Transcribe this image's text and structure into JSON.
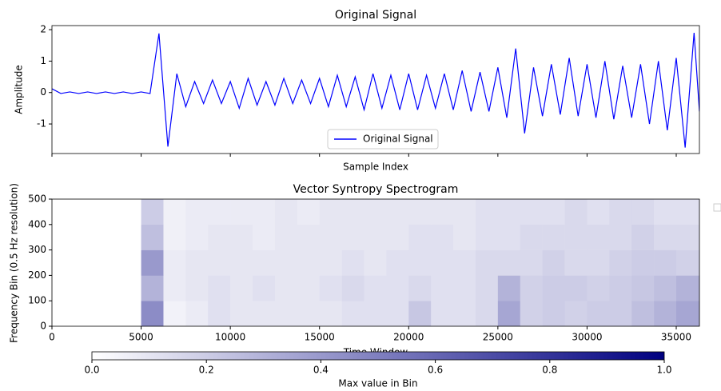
{
  "chart_data": [
    {
      "type": "line",
      "title": "Original Signal",
      "y_label": "Amplitude",
      "x_label": "Sample Index",
      "x": [
        0,
        500,
        1000,
        1500,
        2000,
        2500,
        3000,
        3500,
        4000,
        4500,
        5000,
        5500,
        6000,
        6500,
        7000,
        7500,
        8000,
        8500,
        9000,
        9500,
        10000,
        10500,
        11000,
        11500,
        12000,
        12500,
        13000,
        13500,
        14000,
        14500,
        15000,
        15500,
        16000,
        16500,
        17000,
        17500,
        18000,
        18500,
        19000,
        19500,
        20000,
        20500,
        21000,
        21500,
        22000,
        22500,
        23000,
        23500,
        24000,
        24500,
        25000,
        25500,
        26000,
        26500,
        27000,
        27500,
        28000,
        28500,
        29000,
        29500,
        30000,
        30500,
        31000,
        31500,
        32000,
        32500,
        33000,
        33500,
        34000,
        34500,
        35000,
        35500,
        36000,
        36300
      ],
      "series": [
        {
          "name": "Original Signal",
          "color": "#0000ff",
          "values": [
            0.12,
            -0.03,
            0.02,
            -0.03,
            0.02,
            -0.03,
            0.02,
            -0.03,
            0.02,
            -0.03,
            0.02,
            -0.03,
            1.88,
            -1.72,
            0.6,
            -0.45,
            0.35,
            -0.35,
            0.4,
            -0.35,
            0.35,
            -0.5,
            0.45,
            -0.4,
            0.35,
            -0.4,
            0.45,
            -0.35,
            0.4,
            -0.35,
            0.45,
            -0.45,
            0.55,
            -0.45,
            0.5,
            -0.55,
            0.6,
            -0.5,
            0.55,
            -0.55,
            0.6,
            -0.55,
            0.55,
            -0.5,
            0.6,
            -0.55,
            0.7,
            -0.6,
            0.65,
            -0.6,
            0.8,
            -0.8,
            1.4,
            -1.3,
            0.8,
            -0.75,
            0.9,
            -0.7,
            1.1,
            -0.75,
            0.9,
            -0.8,
            1.0,
            -0.85,
            0.85,
            -0.8,
            0.9,
            -1.0,
            1.0,
            -1.2,
            1.1,
            -1.75,
            1.9,
            -0.6
          ]
        }
      ],
      "xlim": [
        0,
        36300
      ],
      "ylim": [
        -1.94,
        2.13
      ],
      "yticks": [
        -1,
        0,
        1,
        2
      ],
      "legend": "lower center"
    },
    {
      "type": "heatmap",
      "title": "Vector Syntropy Spectrogram",
      "y_label": "Frequency Bin (0.5 Hz resolution)",
      "x_label": "Time Window",
      "x_edges": [
        0,
        1250,
        2500,
        3750,
        5000,
        6250,
        7500,
        8750,
        10000,
        11250,
        12500,
        13750,
        15000,
        16250,
        17500,
        18750,
        20000,
        21250,
        22500,
        23750,
        25000,
        26250,
        27500,
        28750,
        30000,
        31250,
        32500,
        33750,
        35000,
        36300
      ],
      "y_edges": [
        0,
        100,
        200,
        300,
        400,
        500
      ],
      "z": [
        [
          0,
          0,
          0,
          0,
          0.45,
          0.05,
          0.08,
          0.12,
          0.1,
          0.1,
          0.1,
          0.1,
          0.1,
          0.12,
          0.12,
          0.12,
          0.22,
          0.12,
          0.12,
          0.15,
          0.35,
          0.18,
          0.2,
          0.18,
          0.2,
          0.2,
          0.25,
          0.3,
          0.35
        ],
        [
          0,
          0,
          0,
          0,
          0.3,
          0.08,
          0.1,
          0.12,
          0.1,
          0.12,
          0.1,
          0.1,
          0.12,
          0.15,
          0.12,
          0.12,
          0.15,
          0.12,
          0.12,
          0.15,
          0.3,
          0.18,
          0.2,
          0.2,
          0.18,
          0.2,
          0.22,
          0.25,
          0.3
        ],
        [
          0,
          0,
          0,
          0,
          0.4,
          0.08,
          0.1,
          0.1,
          0.1,
          0.1,
          0.1,
          0.1,
          0.1,
          0.12,
          0.1,
          0.12,
          0.12,
          0.12,
          0.12,
          0.15,
          0.15,
          0.15,
          0.18,
          0.15,
          0.15,
          0.18,
          0.2,
          0.2,
          0.18
        ],
        [
          0,
          0,
          0,
          0,
          0.25,
          0.06,
          0.08,
          0.1,
          0.1,
          0.08,
          0.1,
          0.1,
          0.1,
          0.1,
          0.1,
          0.1,
          0.12,
          0.12,
          0.1,
          0.12,
          0.12,
          0.15,
          0.15,
          0.15,
          0.15,
          0.15,
          0.18,
          0.15,
          0.15
        ],
        [
          0,
          0,
          0,
          0,
          0.2,
          0.06,
          0.08,
          0.08,
          0.08,
          0.08,
          0.1,
          0.08,
          0.1,
          0.1,
          0.1,
          0.1,
          0.1,
          0.1,
          0.1,
          0.12,
          0.12,
          0.12,
          0.12,
          0.15,
          0.12,
          0.15,
          0.15,
          0.12,
          0.12
        ]
      ],
      "xlim": [
        0,
        36300
      ],
      "ylim": [
        0,
        500
      ],
      "xticks": [
        0,
        5000,
        10000,
        15000,
        20000,
        25000,
        30000,
        35000
      ],
      "yticks": [
        0,
        100,
        200,
        300,
        400,
        500
      ],
      "colormap": [
        "#ffffff",
        "#000080"
      ],
      "colorbar": {
        "label": "Max value in Bin",
        "clim": [
          0,
          1
        ],
        "ticks": [
          {
            "value": 0,
            "label": "0.0"
          },
          {
            "value": 0.2,
            "label": "0.2"
          },
          {
            "value": 0.4,
            "label": "0.4"
          },
          {
            "value": 0.6,
            "label": "0.6"
          },
          {
            "value": 0.8,
            "label": "0.8"
          },
          {
            "value": 1,
            "label": "1.0"
          }
        ]
      }
    }
  ]
}
